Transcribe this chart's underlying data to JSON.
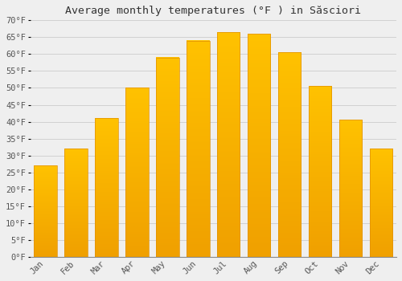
{
  "title": "Average monthly temperatures (°F ) in Săsciori",
  "months": [
    "Jan",
    "Feb",
    "Mar",
    "Apr",
    "May",
    "Jun",
    "Jul",
    "Aug",
    "Sep",
    "Oct",
    "Nov",
    "Dec"
  ],
  "values": [
    27,
    32,
    41,
    50,
    59,
    64,
    66.5,
    66,
    60.5,
    50.5,
    40.5,
    32
  ],
  "bar_color_top": "#FFC200",
  "bar_color_bottom": "#F0A000",
  "bar_edge_color": "#E09000",
  "background_color": "#EFEFEF",
  "grid_color": "#CCCCCC",
  "ylim": [
    0,
    70
  ],
  "yticks": [
    0,
    5,
    10,
    15,
    20,
    25,
    30,
    35,
    40,
    45,
    50,
    55,
    60,
    65,
    70
  ],
  "ylabel_suffix": "°F",
  "title_fontsize": 9.5,
  "tick_fontsize": 7.5
}
